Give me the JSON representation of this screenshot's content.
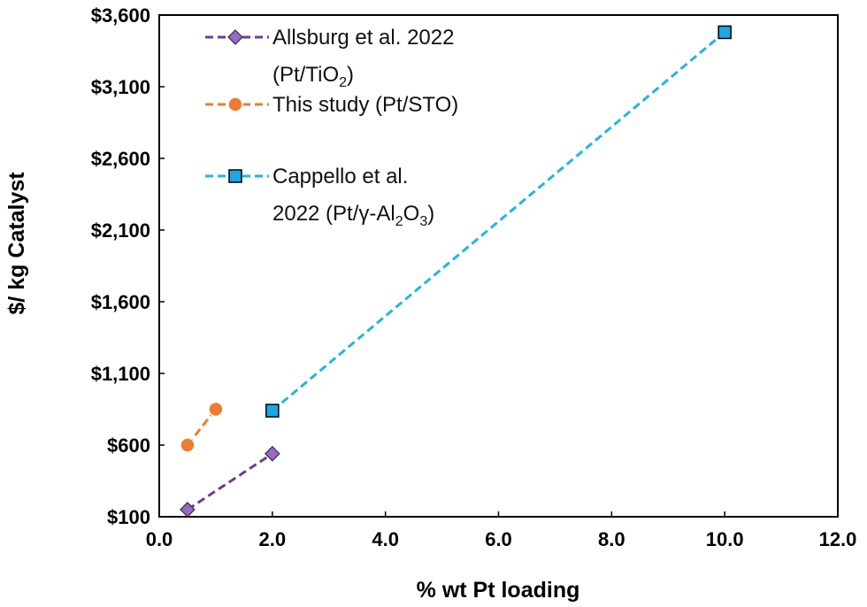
{
  "chart_data": {
    "type": "scatter",
    "xlabel": "% wt Pt loading",
    "ylabel": "$/ kg Catalyst",
    "xlim": [
      0,
      12
    ],
    "ylim": [
      100,
      3600
    ],
    "x_ticks": [
      "0.0",
      "2.0",
      "4.0",
      "6.0",
      "8.0",
      "10.0",
      "12.0"
    ],
    "x_tick_values": [
      0,
      2,
      4,
      6,
      8,
      10,
      12
    ],
    "y_ticks": [
      "$100",
      "$600",
      "$1,100",
      "$1,600",
      "$2,100",
      "$2,600",
      "$3,100",
      "$3,600"
    ],
    "y_tick_values": [
      100,
      600,
      1100,
      1600,
      2100,
      2600,
      3100,
      3600
    ],
    "grid": false,
    "legend_position": "top-left",
    "series": [
      {
        "legend_parts": [
          {
            "text": "Allsburg et al. 2022",
            "sub": false
          },
          {
            "text": "(Pt/TiO",
            "sub": false
          },
          {
            "text": "2",
            "sub": true
          },
          {
            "text": ")",
            "sub": false
          }
        ],
        "legend_lines": [
          [
            0
          ],
          [
            1,
            2,
            3
          ]
        ],
        "color": "#6a3d9a",
        "marker_color": "#9966cc",
        "marker": "diamond",
        "x": [
          0.5,
          2.0
        ],
        "y": [
          150,
          540
        ]
      },
      {
        "legend_parts": [
          {
            "text": "This study (Pt/STO)",
            "sub": false
          }
        ],
        "legend_lines": [
          [
            0
          ]
        ],
        "color": "#ed7d31",
        "marker_color": "#ed7d31",
        "marker": "circle",
        "x": [
          0.5,
          1.0
        ],
        "y": [
          600,
          850
        ]
      },
      {
        "legend_parts": [
          {
            "text": "Cappello et al.",
            "sub": false
          },
          {
            "text": "2022 (Pt/γ-Al",
            "sub": false
          },
          {
            "text": "2",
            "sub": true
          },
          {
            "text": "O",
            "sub": false
          },
          {
            "text": "3",
            "sub": true
          },
          {
            "text": ")",
            "sub": false
          }
        ],
        "legend_lines": [
          [
            0
          ],
          [
            1,
            2,
            3,
            4,
            5
          ]
        ],
        "color": "#1fb5ea",
        "marker_color": "#1aa7e8",
        "marker": "square",
        "x": [
          2.0,
          10.0
        ],
        "y": [
          840,
          3480
        ]
      }
    ]
  }
}
